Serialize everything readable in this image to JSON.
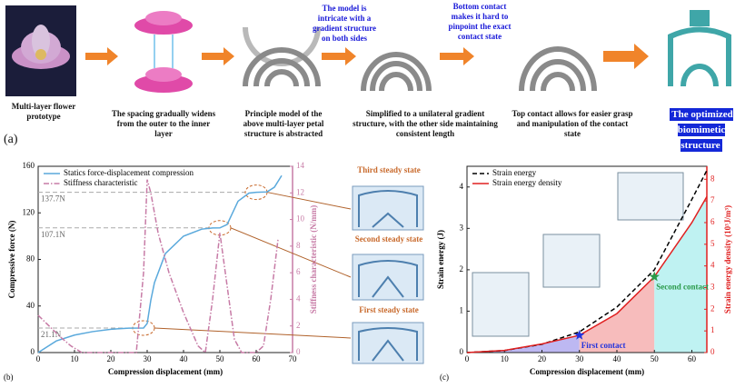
{
  "panel_a": {
    "label": "(a)",
    "captions": [
      "Multi-layer flower prototype",
      "The spacing gradually widens from the outer to the inner layer",
      "Principle model of the above multi-layer petal structure is abstracted",
      "Simplified to a unilateral gradient structure, with the other side maintaining consistent length",
      "Top contact allows for easier grasp and manipulation of the contact state",
      "The optimized biomimetic structure"
    ],
    "notes": [
      "The model is intricate with a gradient structure on both sides",
      "Bottom contact makes it hard to pinpoint the exact contact state"
    ]
  },
  "chart_data": [
    {
      "type": "line",
      "panel_label": "(b)",
      "xlabel": "Compression displacement (mm)",
      "ylabel": "Compressive force (N)",
      "y2label": "Stiffness characteristic (N/mm)",
      "y2color": "#c77ba6",
      "xlim": [
        0,
        70
      ],
      "xticks": [
        0,
        10,
        20,
        30,
        40,
        50,
        60,
        70
      ],
      "ylim": [
        0,
        160
      ],
      "yticks": [
        0,
        40,
        80,
        120,
        160
      ],
      "y2lim": [
        0,
        14
      ],
      "y2ticks": [
        0,
        2,
        4,
        6,
        8,
        10,
        12,
        14
      ],
      "legend": "upper left",
      "series": [
        {
          "name": "Statics force-displacement compression",
          "color": "#5aa9dc",
          "dash": "solid",
          "x": [
            0,
            5,
            10,
            15,
            20,
            25,
            29,
            30,
            31,
            32,
            35,
            40,
            45,
            48,
            50,
            52,
            55,
            58,
            60,
            63,
            65,
            67
          ],
          "values": [
            0,
            10,
            15,
            18,
            20,
            21,
            21.1,
            25,
            45,
            60,
            85,
            100,
            106,
            107,
            107.1,
            110,
            130,
            137,
            137.7,
            138,
            142,
            152
          ]
        },
        {
          "name": "Stiffness characteristic",
          "color": "#c77ba6",
          "dash": "dashdot",
          "axis": "y2",
          "x": [
            0,
            3,
            6,
            9,
            12,
            20,
            27,
            29,
            30,
            31,
            33,
            36,
            40,
            44,
            46,
            48,
            50,
            52,
            54,
            56,
            60,
            62,
            64,
            66
          ],
          "values": [
            2.8,
            2.0,
            1.2,
            0.5,
            0,
            0,
            0,
            6,
            13,
            12,
            9,
            6,
            3,
            0.5,
            0,
            4,
            9,
            5,
            1,
            0,
            0,
            0.5,
            4,
            8.5
          ]
        }
      ],
      "reference_lines": [
        {
          "value": 137.7,
          "label": "137.7N"
        },
        {
          "value": 107.1,
          "label": "107.1N"
        },
        {
          "value": 21.1,
          "label": "21.1N"
        }
      ],
      "states": [
        "Third steady state",
        "Second steady state",
        "First steady state"
      ],
      "state_color": "#c8692b"
    },
    {
      "type": "line",
      "panel_label": "(c)",
      "xlabel": "Compression displacement (mm)",
      "ylabel": "Strain energy (J)",
      "y2label": "Strain energy density (10³J/m³)",
      "y2color": "#e02020",
      "xlim": [
        0,
        64
      ],
      "xticks": [
        0,
        10,
        20,
        30,
        40,
        50,
        60
      ],
      "ylim": [
        0,
        4.5
      ],
      "yticks": [
        0,
        1,
        2,
        3,
        4
      ],
      "y2lim": [
        0,
        8.6
      ],
      "y2ticks": [
        0,
        1,
        2,
        3,
        4,
        5,
        6,
        7,
        8
      ],
      "legend": "upper left",
      "series": [
        {
          "name": "Strain energy",
          "color": "#000000",
          "dash": "dashed",
          "x": [
            0,
            10,
            20,
            30,
            40,
            50,
            60,
            64
          ],
          "values": [
            0,
            0.05,
            0.2,
            0.5,
            1.1,
            2.0,
            3.7,
            4.4
          ]
        },
        {
          "name": "Strain energy density",
          "color": "#e02020",
          "dash": "solid",
          "axis": "y2",
          "x": [
            0,
            10,
            20,
            30,
            40,
            50,
            60,
            64
          ],
          "values": [
            0,
            0.1,
            0.4,
            0.8,
            1.8,
            3.5,
            6.0,
            7.2
          ]
        }
      ],
      "regions": [
        {
          "from": 0,
          "to": 30,
          "color": "#bdb8f2"
        },
        {
          "from": 30,
          "to": 50,
          "color": "#f7bcbc"
        },
        {
          "from": 50,
          "to": 64,
          "color": "#bff2f2"
        }
      ],
      "markers": [
        {
          "x": 30,
          "y": 0.8,
          "label": "First contact",
          "color": "#2233dd"
        },
        {
          "x": 50,
          "y": 3.5,
          "label": "Second contact",
          "color": "#2a9a4a"
        }
      ]
    }
  ]
}
